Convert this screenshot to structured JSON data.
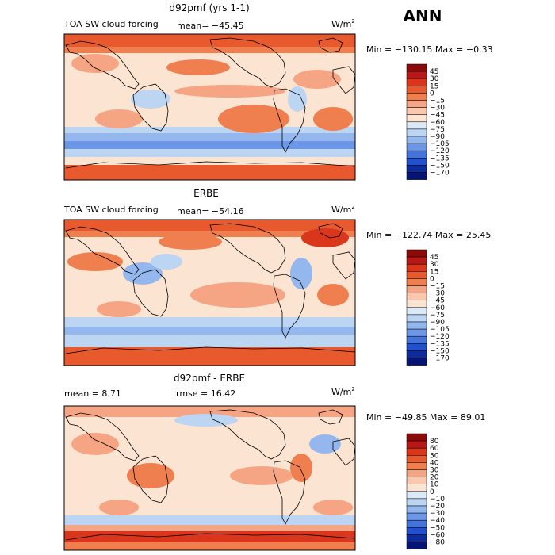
{
  "season": "ANN",
  "panels": [
    {
      "title": "d92pmf (yrs 1-1)",
      "left_label": "TOA SW cloud forcing",
      "mid_label": "mean= −45.45",
      "units_base": "W/m",
      "units_exp": "2",
      "minmax": "Min = −130.15  Max =   −0.33"
    },
    {
      "title": "ERBE",
      "left_label": "TOA SW cloud forcing",
      "mid_label": "mean= −54.16",
      "units_base": "W/m",
      "units_exp": "2",
      "minmax": "Min = −122.74  Max =  25.45"
    },
    {
      "title": "d92pmf - ERBE",
      "left_label": "mean =    8.71",
      "mid_label": "rmse =   16.42",
      "units_base": "W/m",
      "units_exp": "2",
      "minmax": "Min = −49.85  Max =  89.01"
    }
  ],
  "chart_data": [
    {
      "type": "heatmap",
      "title": "d92pmf (yrs 1-1)",
      "variable": "TOA SW cloud forcing",
      "units": "W/m2",
      "mean": -45.45,
      "min": -130.15,
      "max": -0.33,
      "colorbar_levels": [
        "45",
        "30",
        "15",
        "0",
        "−15",
        "−30",
        "−45",
        "−60",
        "−75",
        "−90",
        "−105",
        "−120",
        "−135",
        "−150",
        "−170"
      ],
      "colorbar_colors": [
        "#8c0a0a",
        "#b81818",
        "#d9361c",
        "#e8592e",
        "#f07f4f",
        "#f5a584",
        "#f9c8ad",
        "#fbe4d2",
        "#dce9f7",
        "#bcd5f3",
        "#94b8ee",
        "#6c96e6",
        "#4573dc",
        "#2350cc",
        "#0c2c9e",
        "#061473"
      ]
    },
    {
      "type": "heatmap",
      "title": "ERBE",
      "variable": "TOA SW cloud forcing",
      "units": "W/m2",
      "mean": -54.16,
      "min": -122.74,
      "max": 25.45,
      "colorbar_levels": [
        "45",
        "30",
        "15",
        "0",
        "−15",
        "−30",
        "−45",
        "−60",
        "−75",
        "−90",
        "−105",
        "−120",
        "−135",
        "−150",
        "−170"
      ],
      "colorbar_colors": [
        "#8c0a0a",
        "#b81818",
        "#d9361c",
        "#e8592e",
        "#f07f4f",
        "#f5a584",
        "#f9c8ad",
        "#fbe4d2",
        "#dce9f7",
        "#bcd5f3",
        "#94b8ee",
        "#6c96e6",
        "#4573dc",
        "#2350cc",
        "#0c2c9e",
        "#061473"
      ]
    },
    {
      "type": "heatmap",
      "title": "d92pmf - ERBE",
      "units": "W/m2",
      "mean": 8.71,
      "rmse": 16.42,
      "min": -49.85,
      "max": 89.01,
      "colorbar_levels": [
        "80",
        "60",
        "50",
        "40",
        "30",
        "20",
        "10",
        "0",
        "−10",
        "−20",
        "−30",
        "−40",
        "−50",
        "−60",
        "−80"
      ],
      "colorbar_colors": [
        "#8c0a0a",
        "#b81818",
        "#d9361c",
        "#e8592e",
        "#f07f4f",
        "#f5a584",
        "#f9c8ad",
        "#fbe4d2",
        "#dce9f7",
        "#bcd5f3",
        "#94b8ee",
        "#6c96e6",
        "#4573dc",
        "#2350cc",
        "#0c2c9e",
        "#061473"
      ]
    }
  ]
}
